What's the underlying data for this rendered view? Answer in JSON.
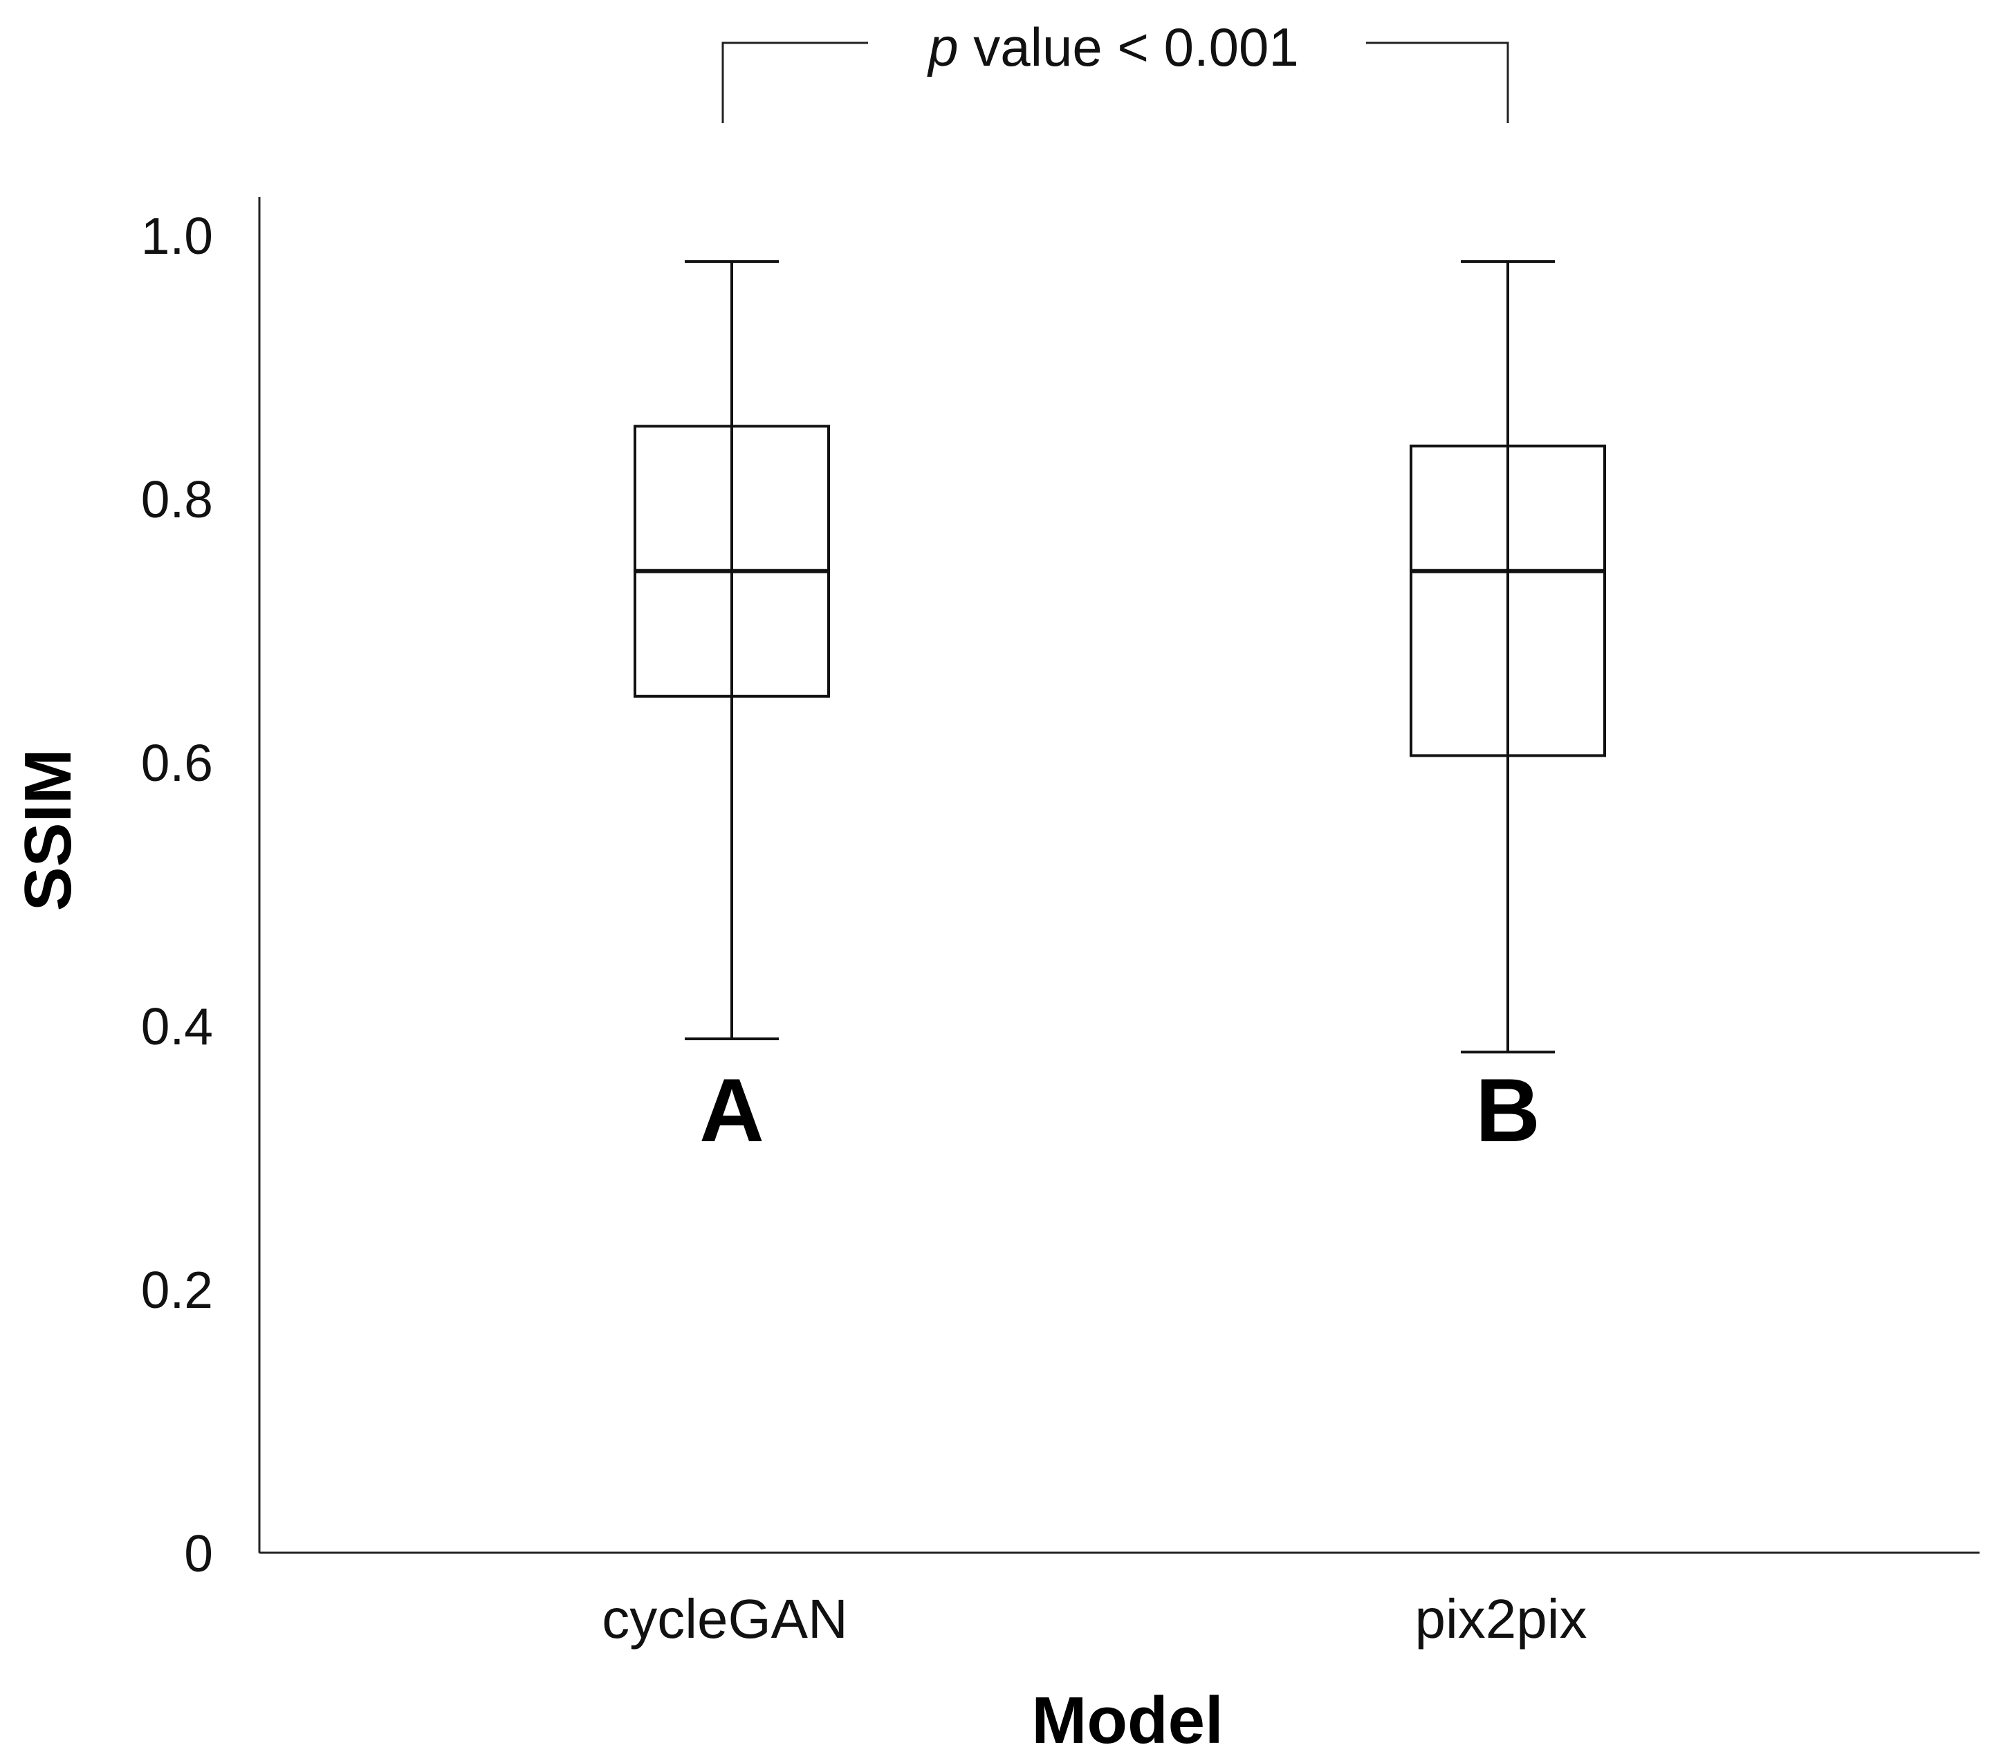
{
  "chart_data": {
    "type": "boxplot",
    "title": "",
    "xlabel": "Model",
    "ylabel": "SSIM",
    "ylim": [
      0,
      1.0
    ],
    "yticks": [
      "0",
      "0.2",
      "0.4",
      "0.6",
      "0.8",
      "1.0"
    ],
    "ytick_values": [
      0,
      0.2,
      0.4,
      0.6,
      0.8,
      1.0
    ],
    "grid": false,
    "categories": [
      "cycleGAN",
      "pix2pix"
    ],
    "boxes": [
      {
        "name": "cycleGAN",
        "group_letter": "A",
        "whisker_low": 0.39,
        "q1": 0.65,
        "median": 0.745,
        "q3": 0.855,
        "whisker_high": 0.98
      },
      {
        "name": "pix2pix",
        "group_letter": "B",
        "whisker_low": 0.38,
        "q1": 0.605,
        "median": 0.745,
        "q3": 0.84,
        "whisker_high": 0.98
      }
    ],
    "annotation": {
      "prefix_italic": "p",
      "text": " value < 0.001"
    }
  }
}
